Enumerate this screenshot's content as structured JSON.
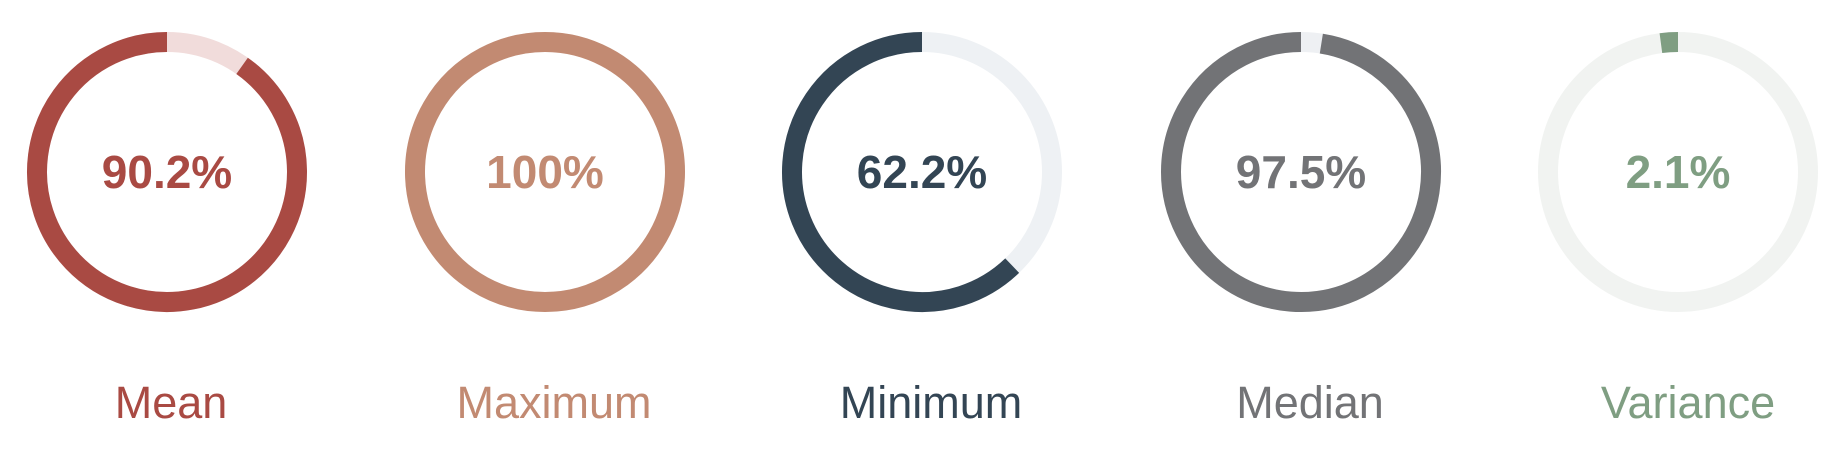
{
  "chart_data": {
    "type": "gauge",
    "gauges": [
      {
        "label": "Mean",
        "value": 90.2,
        "display": "90.2%",
        "color": "#a94a43",
        "track_color": "#f1dcdb"
      },
      {
        "label": "Maximum",
        "value": 100,
        "display": "100%",
        "color": "#c28a72",
        "track_color": "#f5ebe6"
      },
      {
        "label": "Minimum",
        "value": 62.2,
        "display": "62.2%",
        "color": "#334554",
        "track_color": "#eef1f4"
      },
      {
        "label": "Median",
        "value": 97.5,
        "display": "97.5%",
        "color": "#727376",
        "track_color": "#eef0f3"
      },
      {
        "label": "Variance",
        "value": 2.1,
        "display": "2.1%",
        "color": "#7f9e82",
        "track_color": "#f1f3f1"
      }
    ]
  }
}
